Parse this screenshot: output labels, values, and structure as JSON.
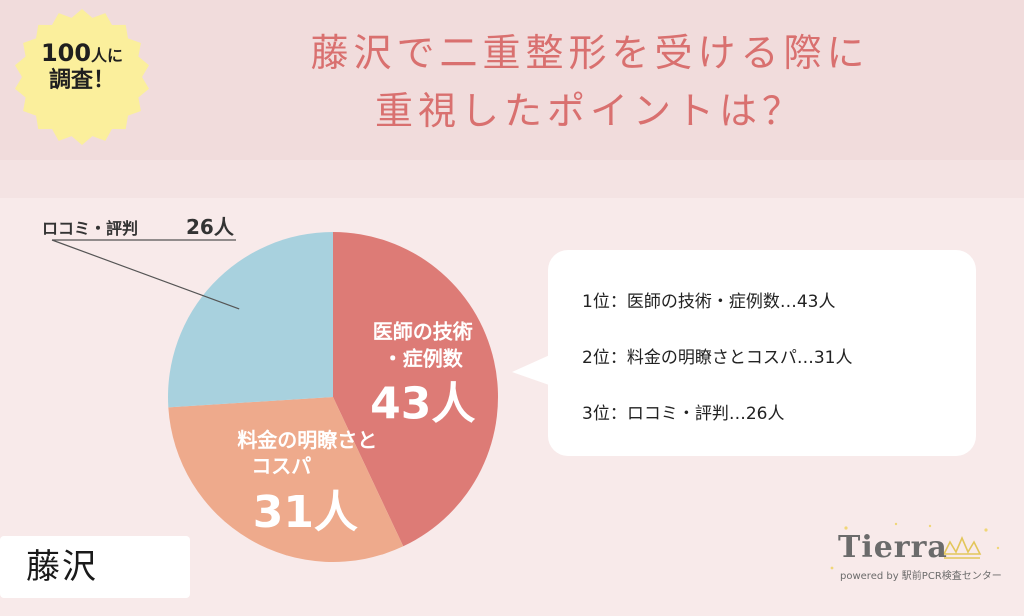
{
  "badge": {
    "count": "100",
    "unit": "人に",
    "line2": "調査！"
  },
  "title": {
    "line1": "藤沢で二重整形を受ける際に",
    "line2": "重視したポイントは？"
  },
  "chart_data": {
    "type": "pie",
    "title": "藤沢で二重整形を受ける際に重視したポイントは？",
    "unit": "人",
    "slices": [
      {
        "label_lines": [
          "医師の技術",
          "・症例数"
        ],
        "value": 43,
        "value_label": "43人",
        "color": "#dd7b76"
      },
      {
        "label_lines": [
          "料金の明瞭さと",
          "コスパ"
        ],
        "value": 31,
        "value_label": "31人",
        "color": "#eeaa8c"
      },
      {
        "label_lines": [
          "ロコミ・評判"
        ],
        "value": 26,
        "value_label": "26人",
        "color": "#a8d1de"
      }
    ],
    "callout": {
      "label": "ロコミ・評判",
      "value_label": "26人"
    }
  },
  "legend": [
    {
      "rank": "1位：",
      "text": "医師の技術・症例数…43人"
    },
    {
      "rank": "2位：",
      "text": "料金の明瞭さとコスパ…31人"
    },
    {
      "rank": "3位：",
      "text": "ロコミ・評判…26人"
    }
  ],
  "region": "藤沢",
  "logo": {
    "name": "Tierra",
    "sub": "powered by 駅前PCR検査センター"
  },
  "colors": {
    "title": "#d9706f",
    "header_bg": "#f1dcdc",
    "page_bg": "#f8eaea",
    "badge": "#fbef9c"
  }
}
